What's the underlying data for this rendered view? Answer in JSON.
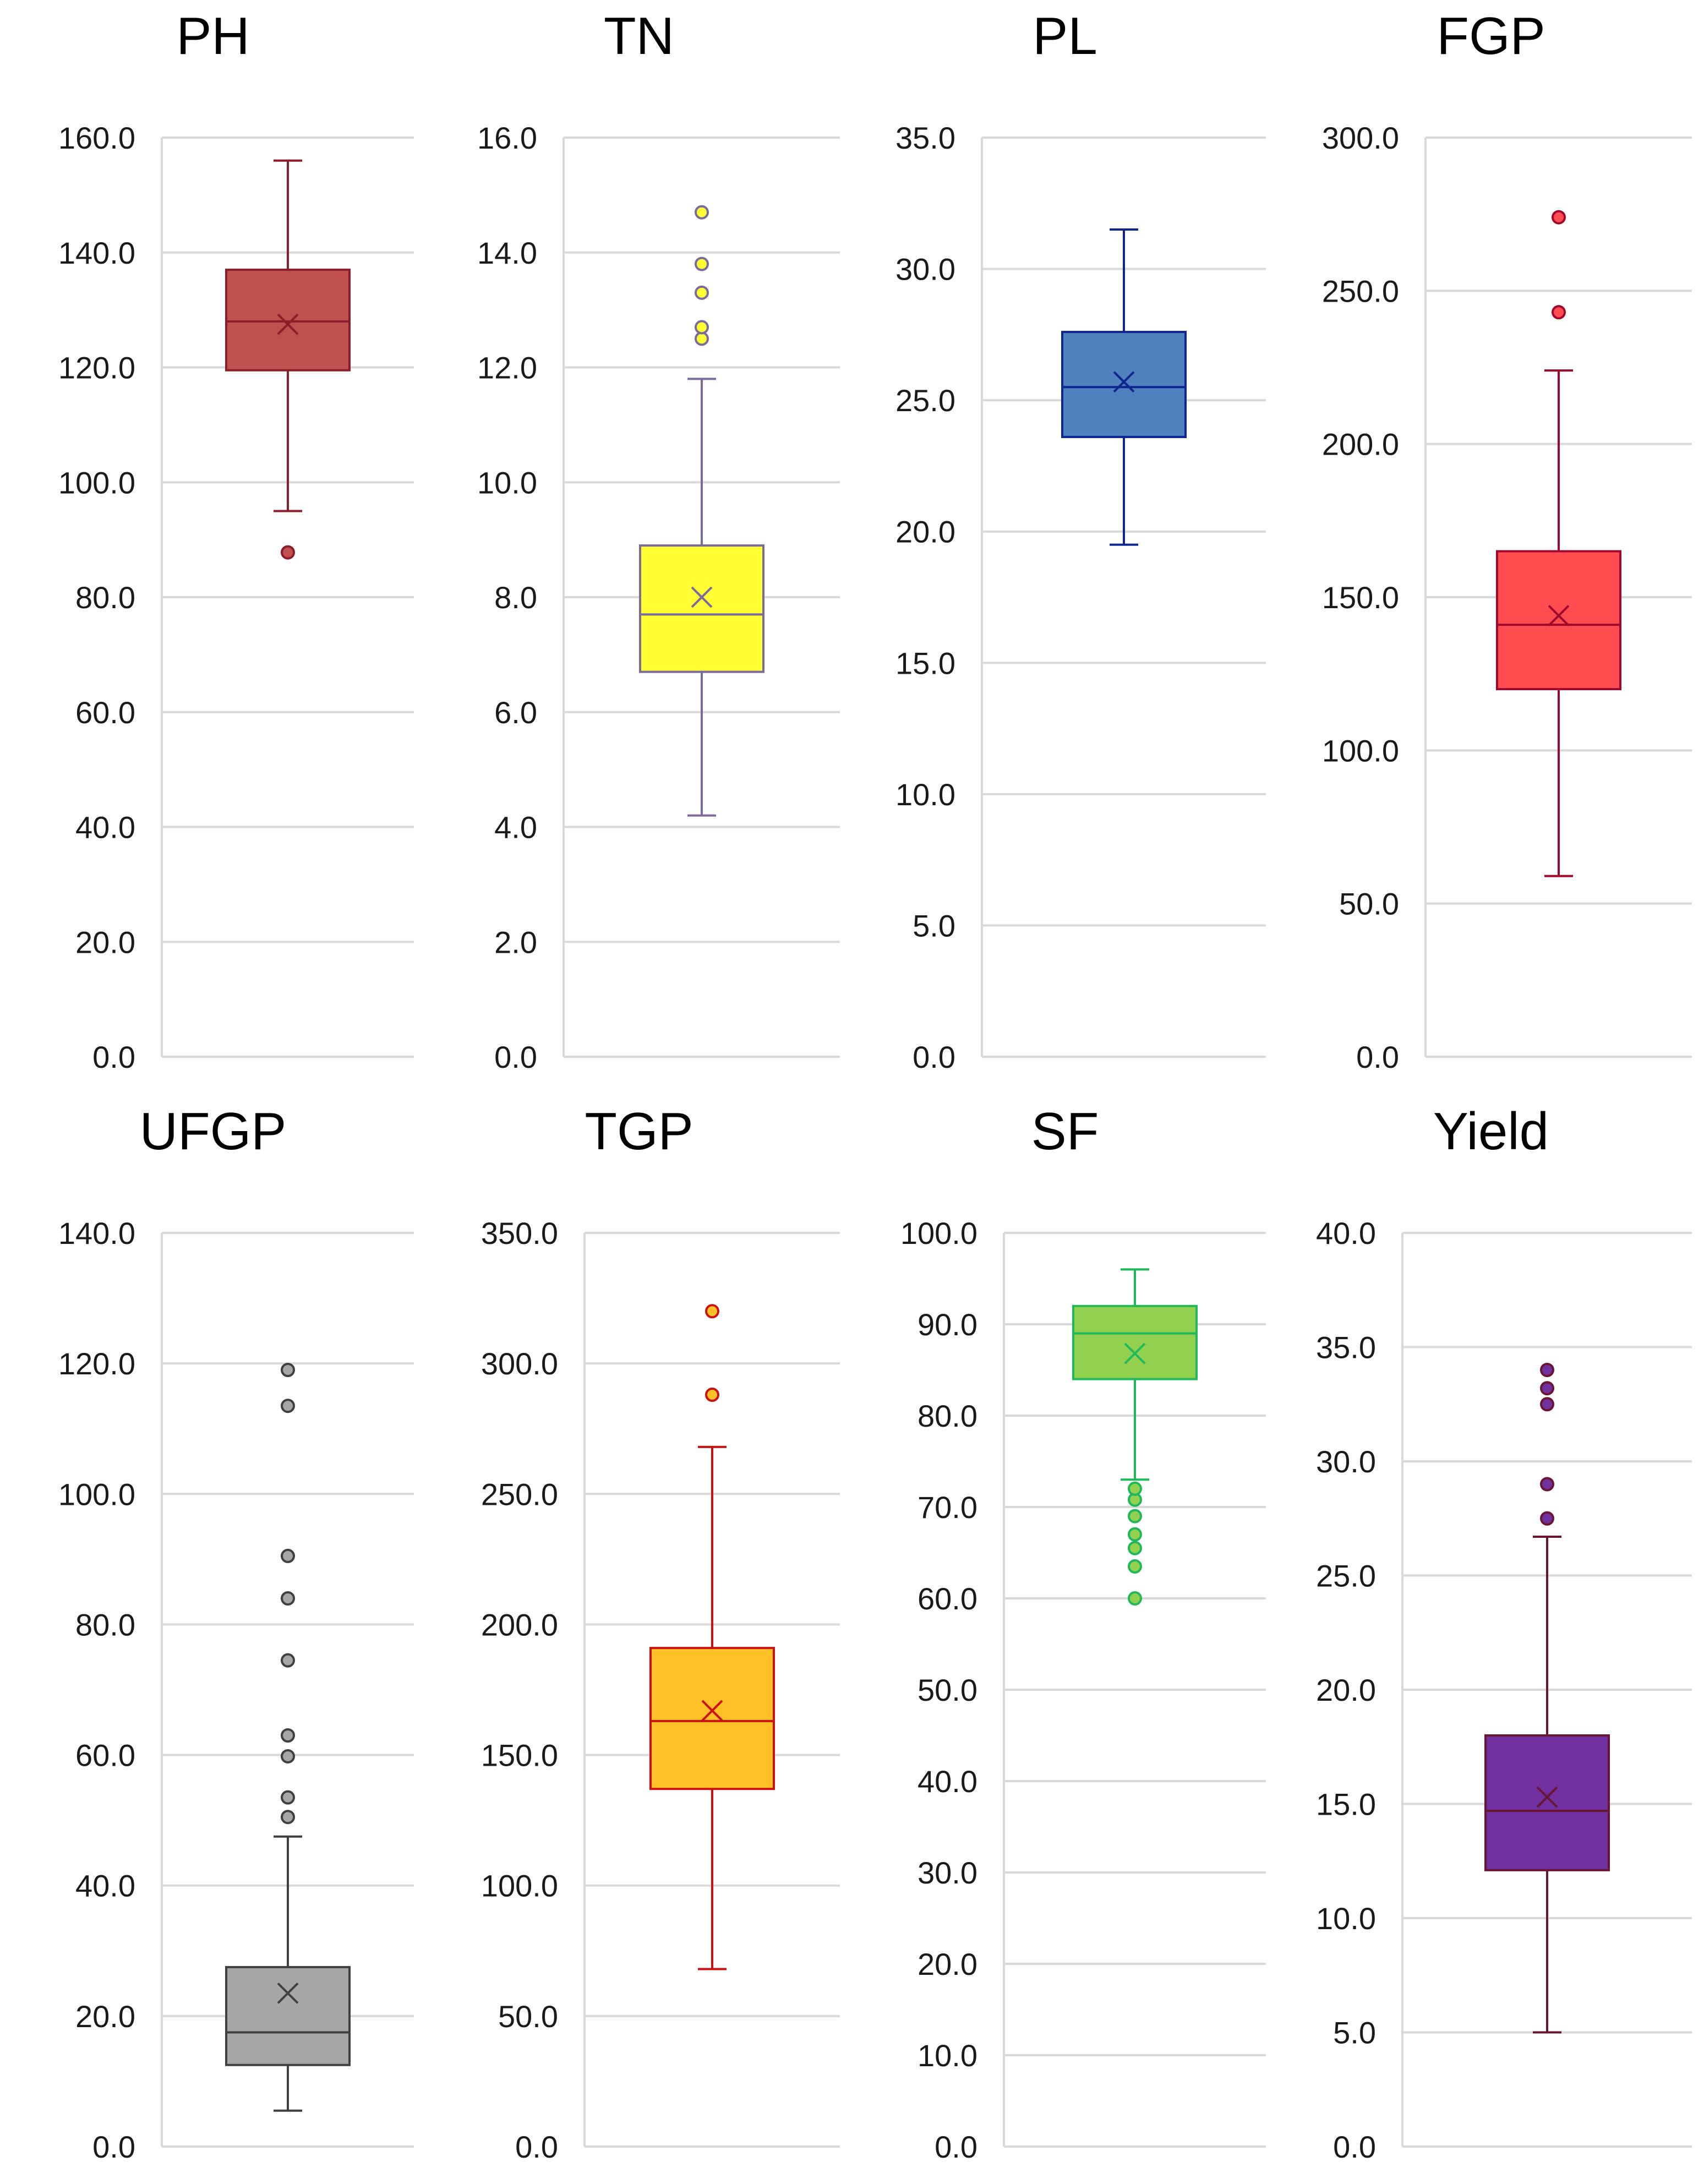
{
  "chart_data": [
    {
      "type": "box",
      "title": "PH",
      "ylim": [
        0,
        160
      ],
      "ticks": [
        "0.0",
        "20.0",
        "40.0",
        "60.0",
        "80.0",
        "100.0",
        "120.0",
        "140.0",
        "160.0"
      ],
      "fill": "#c0504d",
      "stroke": "#8b1e2a",
      "min": 95,
      "q1": 119.5,
      "median": 128,
      "q3": 137,
      "max": 156,
      "mean": 127.5,
      "outliers": [
        87.8
      ]
    },
    {
      "type": "box",
      "title": "TN",
      "ylim": [
        0,
        16
      ],
      "ticks": [
        "0.0",
        "2.0",
        "4.0",
        "6.0",
        "8.0",
        "10.0",
        "12.0",
        "14.0",
        "16.0"
      ],
      "fill": "#ffff33",
      "stroke": "#7a6a9e",
      "min": 4.2,
      "q1": 6.7,
      "median": 7.7,
      "q3": 8.9,
      "max": 11.8,
      "mean": 8.0,
      "outliers": [
        12.5,
        12.7,
        13.3,
        13.8,
        14.7
      ]
    },
    {
      "type": "box",
      "title": "PL",
      "ylim": [
        0,
        35
      ],
      "ticks": [
        "0.0",
        "5.0",
        "10.0",
        "15.0",
        "20.0",
        "25.0",
        "30.0",
        "35.0"
      ],
      "fill": "#4f81bd",
      "stroke": "#0f2590",
      "min": 19.5,
      "q1": 23.6,
      "median": 25.5,
      "q3": 27.6,
      "max": 31.5,
      "mean": 25.7,
      "outliers": []
    },
    {
      "type": "box",
      "title": "FGP",
      "ylim": [
        0,
        300
      ],
      "ticks": [
        "0.0",
        "50.0",
        "100.0",
        "150.0",
        "200.0",
        "250.0",
        "300.0"
      ],
      "fill": "#ff4c4f",
      "stroke": "#a1082e",
      "min": 59,
      "q1": 120,
      "median": 141,
      "q3": 165,
      "max": 224,
      "mean": 144,
      "outliers": [
        243,
        274
      ]
    },
    {
      "type": "box",
      "title": "UFGP",
      "ylim": [
        0,
        140
      ],
      "ticks": [
        "0.0",
        "20.0",
        "40.0",
        "60.0",
        "80.0",
        "100.0",
        "120.0",
        "140.0"
      ],
      "fill": "#a6a6a6",
      "stroke": "#404040",
      "min": 5.5,
      "q1": 12.5,
      "median": 17.5,
      "q3": 27.5,
      "max": 47.5,
      "mean": 23.5,
      "outliers": [
        50.5,
        53.5,
        59.8,
        63,
        74.5,
        84,
        90.5,
        113.5,
        119
      ]
    },
    {
      "type": "box",
      "title": "TGP",
      "ylim": [
        0,
        350
      ],
      "ticks": [
        "0.0",
        "50.0",
        "100.0",
        "150.0",
        "200.0",
        "250.0",
        "300.0",
        "350.0"
      ],
      "fill": "#ffc125",
      "stroke": "#cc1111",
      "min": 68,
      "q1": 137,
      "median": 163,
      "q3": 191,
      "max": 268,
      "mean": 167,
      "outliers": [
        288,
        320
      ]
    },
    {
      "type": "box",
      "title": "SF",
      "ylim": [
        0,
        100
      ],
      "ticks": [
        "0.0",
        "10.0",
        "20.0",
        "30.0",
        "40.0",
        "50.0",
        "60.0",
        "70.0",
        "80.0",
        "90.0",
        "100.0"
      ],
      "fill": "#92d050",
      "stroke": "#1fb85a",
      "min": 73,
      "q1": 84,
      "median": 89,
      "q3": 92,
      "max": 96,
      "mean": 86.8,
      "outliers": [
        60,
        63.5,
        65.5,
        67,
        69,
        70.8,
        72
      ]
    },
    {
      "type": "box",
      "title": "Yield",
      "ylim": [
        0,
        40
      ],
      "ticks": [
        "0.0",
        "5.0",
        "10.0",
        "15.0",
        "20.0",
        "25.0",
        "30.0",
        "35.0",
        "40.0"
      ],
      "fill": "#7030a0",
      "stroke": "#6b1535",
      "min": 5,
      "q1": 12.1,
      "median": 14.7,
      "q3": 18,
      "max": 26.7,
      "mean": 15.3,
      "outliers": [
        27.5,
        29,
        32.5,
        33.2,
        34
      ]
    }
  ]
}
